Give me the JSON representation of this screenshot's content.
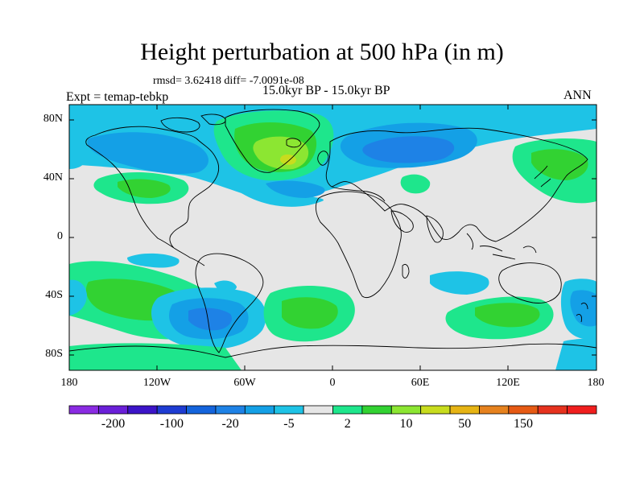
{
  "map": {
    "title": "Height perturbation at 500 hPa (in m)",
    "stats_text": "rmsd= 3.62418 diff= -7.0091e-08",
    "left_label": "Expt = temap-tebkp",
    "center_label": "15.0kyr BP - 15.0kyr BP",
    "right_label": "ANN",
    "lat_ticks": [
      "80N",
      "40N",
      "0",
      "40S",
      "80S"
    ],
    "lon_ticks": [
      "180",
      "120W",
      "60W",
      "0",
      "60E",
      "120E",
      "180"
    ]
  },
  "colorbar": {
    "colors": [
      "#8a2be2",
      "#6a1fd8",
      "#3c14c8",
      "#1e3cd2",
      "#1464dc",
      "#1e82e6",
      "#14a0e6",
      "#1ec3e6",
      "#e6e6e6",
      "#1ee68c",
      "#32d232",
      "#8ce632",
      "#c8dc1e",
      "#e6b414",
      "#e6821e",
      "#e65a14",
      "#e6321e",
      "#f01e1e"
    ],
    "labels": [
      "-200",
      "-100",
      "-20",
      "-5",
      "2",
      "10",
      "50",
      "150"
    ],
    "missing_color": "#e6e6e6"
  },
  "field_colors": {
    "neutral": "#e6e6e6",
    "lightblue": "#1ec3e6",
    "blue": "#14a0e6",
    "darkblue": "#1e82e6",
    "green": "#1ee68c",
    "darkgreen": "#32d232",
    "lime": "#8ce632",
    "yellow": "#c8dc1e"
  }
}
